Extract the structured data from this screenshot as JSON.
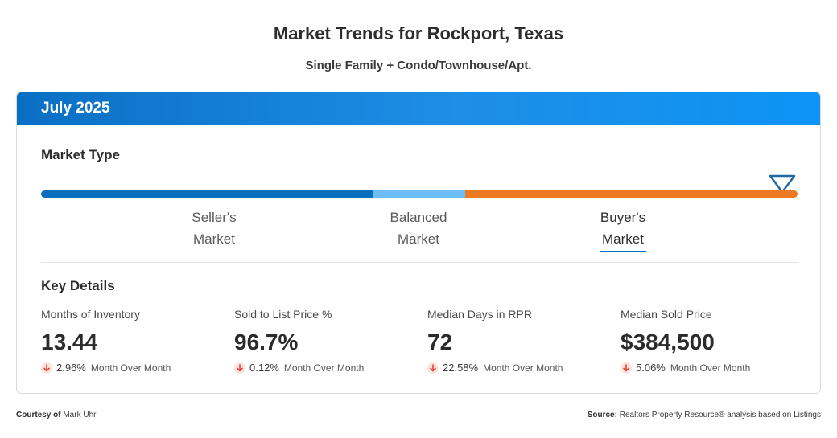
{
  "header": {
    "title": "Market Trends for Rockport, Texas",
    "subtitle": "Single Family + Condo/Townhouse/Apt."
  },
  "card": {
    "period": "July 2025",
    "market_type": {
      "title": "Market Type",
      "segments": [
        {
          "label_line1": "Seller's",
          "label_line2": "Market",
          "color": "#0a6ebd"
        },
        {
          "label_line1": "Balanced",
          "label_line2": "Market",
          "color": "#6cbcf5"
        },
        {
          "label_line1": "Buyer's",
          "label_line2": "Market",
          "color": "#ec7a25"
        }
      ],
      "selected": "Buyer's Market",
      "marker_icon": "down-triangle-marker-icon"
    },
    "key_details": {
      "title": "Key Details",
      "metrics": [
        {
          "label": "Months of Inventory",
          "value": "13.44",
          "change": "2.96%",
          "change_text": "Month Over Month",
          "direction": "down"
        },
        {
          "label": "Sold to List Price %",
          "value": "96.7%",
          "change": "0.12%",
          "change_text": "Month Over Month",
          "direction": "down"
        },
        {
          "label": "Median Days in RPR",
          "value": "72",
          "change": "22.58%",
          "change_text": "Month Over Month",
          "direction": "down"
        },
        {
          "label": "Median Sold Price",
          "value": "$384,500",
          "change": "5.06%",
          "change_text": "Month Over Month",
          "direction": "down"
        }
      ]
    }
  },
  "footer": {
    "courtesy_label": "Courtesy of",
    "courtesy_name": "Mark Uhr",
    "source_label": "Source:",
    "source_text": "Realtors Property Resource® analysis based on Listings"
  },
  "colors": {
    "header_blue": "#0a6fc4",
    "down_arrow": "#e0443a",
    "accent": "#0a6ebd"
  }
}
